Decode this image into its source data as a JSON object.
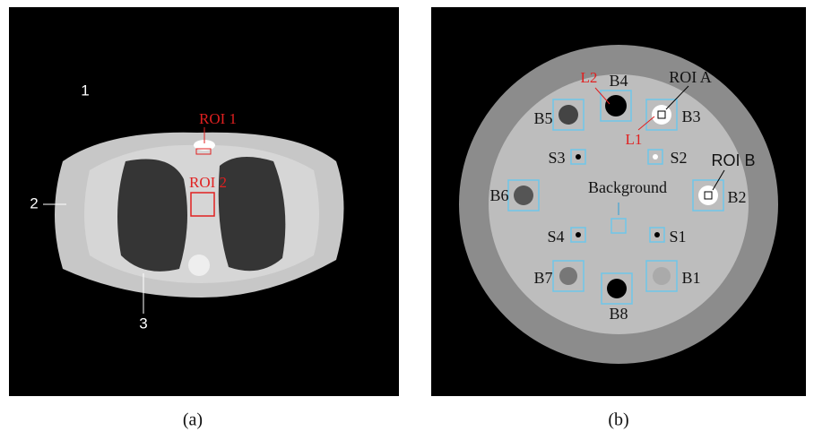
{
  "panels": [
    {
      "caption": "(a)",
      "labels": [
        "1",
        "2",
        "3",
        "ROI 1",
        "ROI 2"
      ]
    },
    {
      "caption": "(b)",
      "labels": [
        "L2",
        "B4",
        "ROI A",
        "B5",
        "B3",
        "L1",
        "S3",
        "S2",
        "ROI B",
        "B6",
        "Background",
        "B2",
        "S4",
        "S1",
        "B7",
        "B1",
        "B8"
      ]
    }
  ]
}
